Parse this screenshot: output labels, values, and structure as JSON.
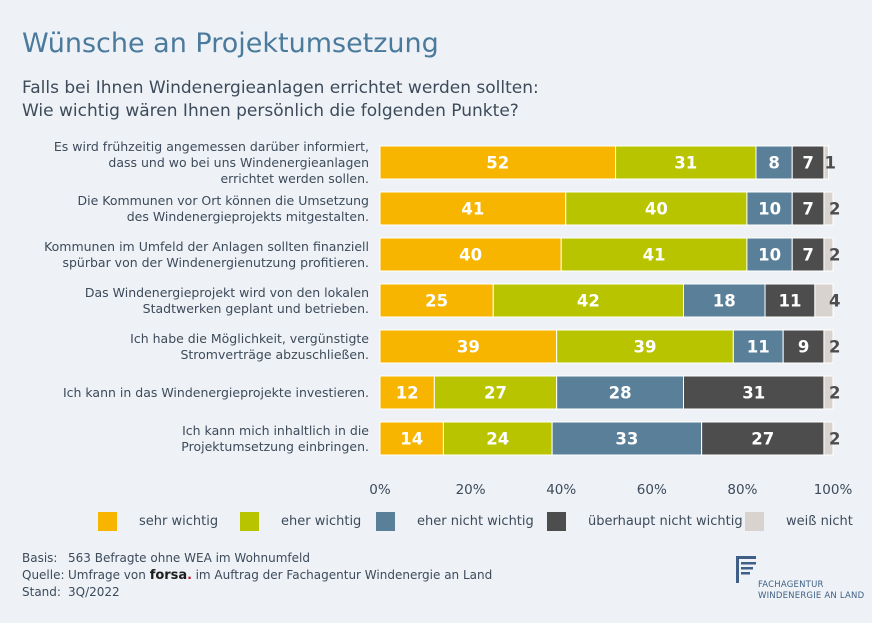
{
  "header": {
    "title": "Wünsche an Projektumsetzung",
    "subtitle_line1": "Falls bei Ihnen Windenergieanlagen errichtet werden sollten:",
    "subtitle_line2": "Wie wichtig wären Ihnen persönlich die folgenden Punkte?"
  },
  "chart_data": {
    "type": "bar",
    "orientation": "horizontal-stacked",
    "title": "Wünsche an Projektumsetzung",
    "categories": [
      [
        "Es wird frühzeitig angemessen darüber informiert,",
        "dass und wo bei uns Windenergieanlagen",
        "errichtet werden sollen."
      ],
      [
        "Die Kommunen vor Ort können die Umsetzung",
        "des Windenergieprojekts mitgestalten."
      ],
      [
        "Kommunen im Umfeld der Anlagen sollten finanziell",
        "spürbar von der Windenergienutzung profitieren."
      ],
      [
        "Das Windenergieprojekt wird von den lokalen",
        "Stadtwerken geplant und betrieben."
      ],
      [
        "Ich habe die Möglichkeit, vergünstigte",
        "Stromverträge abzuschließen."
      ],
      [
        "Ich kann in das Windenergieprojekte investieren."
      ],
      [
        "Ich kann mich inhaltlich in die",
        "Projektumsetzung einbringen."
      ]
    ],
    "series": [
      {
        "name": "sehr wichtig",
        "color": "#f7b500",
        "values": [
          52,
          41,
          40,
          25,
          39,
          12,
          14
        ]
      },
      {
        "name": "eher wichtig",
        "color": "#b9c400",
        "values": [
          31,
          40,
          41,
          42,
          39,
          27,
          24
        ]
      },
      {
        "name": "eher nicht wichtig",
        "color": "#5a7f99",
        "values": [
          8,
          10,
          10,
          18,
          11,
          28,
          33
        ]
      },
      {
        "name": "überhaupt nicht wichtig",
        "color": "#4d4d4d",
        "values": [
          7,
          7,
          7,
          11,
          9,
          31,
          27
        ]
      },
      {
        "name": "weiß nicht",
        "color": "#d9d3cf",
        "values": [
          1,
          2,
          2,
          4,
          2,
          2,
          2
        ]
      }
    ],
    "xlim": [
      0,
      100
    ],
    "xticks": [
      "0%",
      "20%",
      "40%",
      "60%",
      "80%",
      "100%"
    ],
    "legend_position": "bottom",
    "grid": false
  },
  "footer": {
    "basis_label": "Basis:",
    "basis_value": "563 Befragte ohne WEA im Wohnumfeld",
    "source_label": "Quelle:",
    "source_prefix": "Umfrage von",
    "source_brand": "forsa",
    "source_brand_dot": ".",
    "source_suffix": "im Auftrag der Fachagentur Windenergie an Land",
    "date_label": "Stand:",
    "date_value": "3Q/2022"
  },
  "logo": {
    "line1": "FACHAGENTUR",
    "line2": "WINDENERGIE AN LAND",
    "color": "#3f5f86"
  }
}
